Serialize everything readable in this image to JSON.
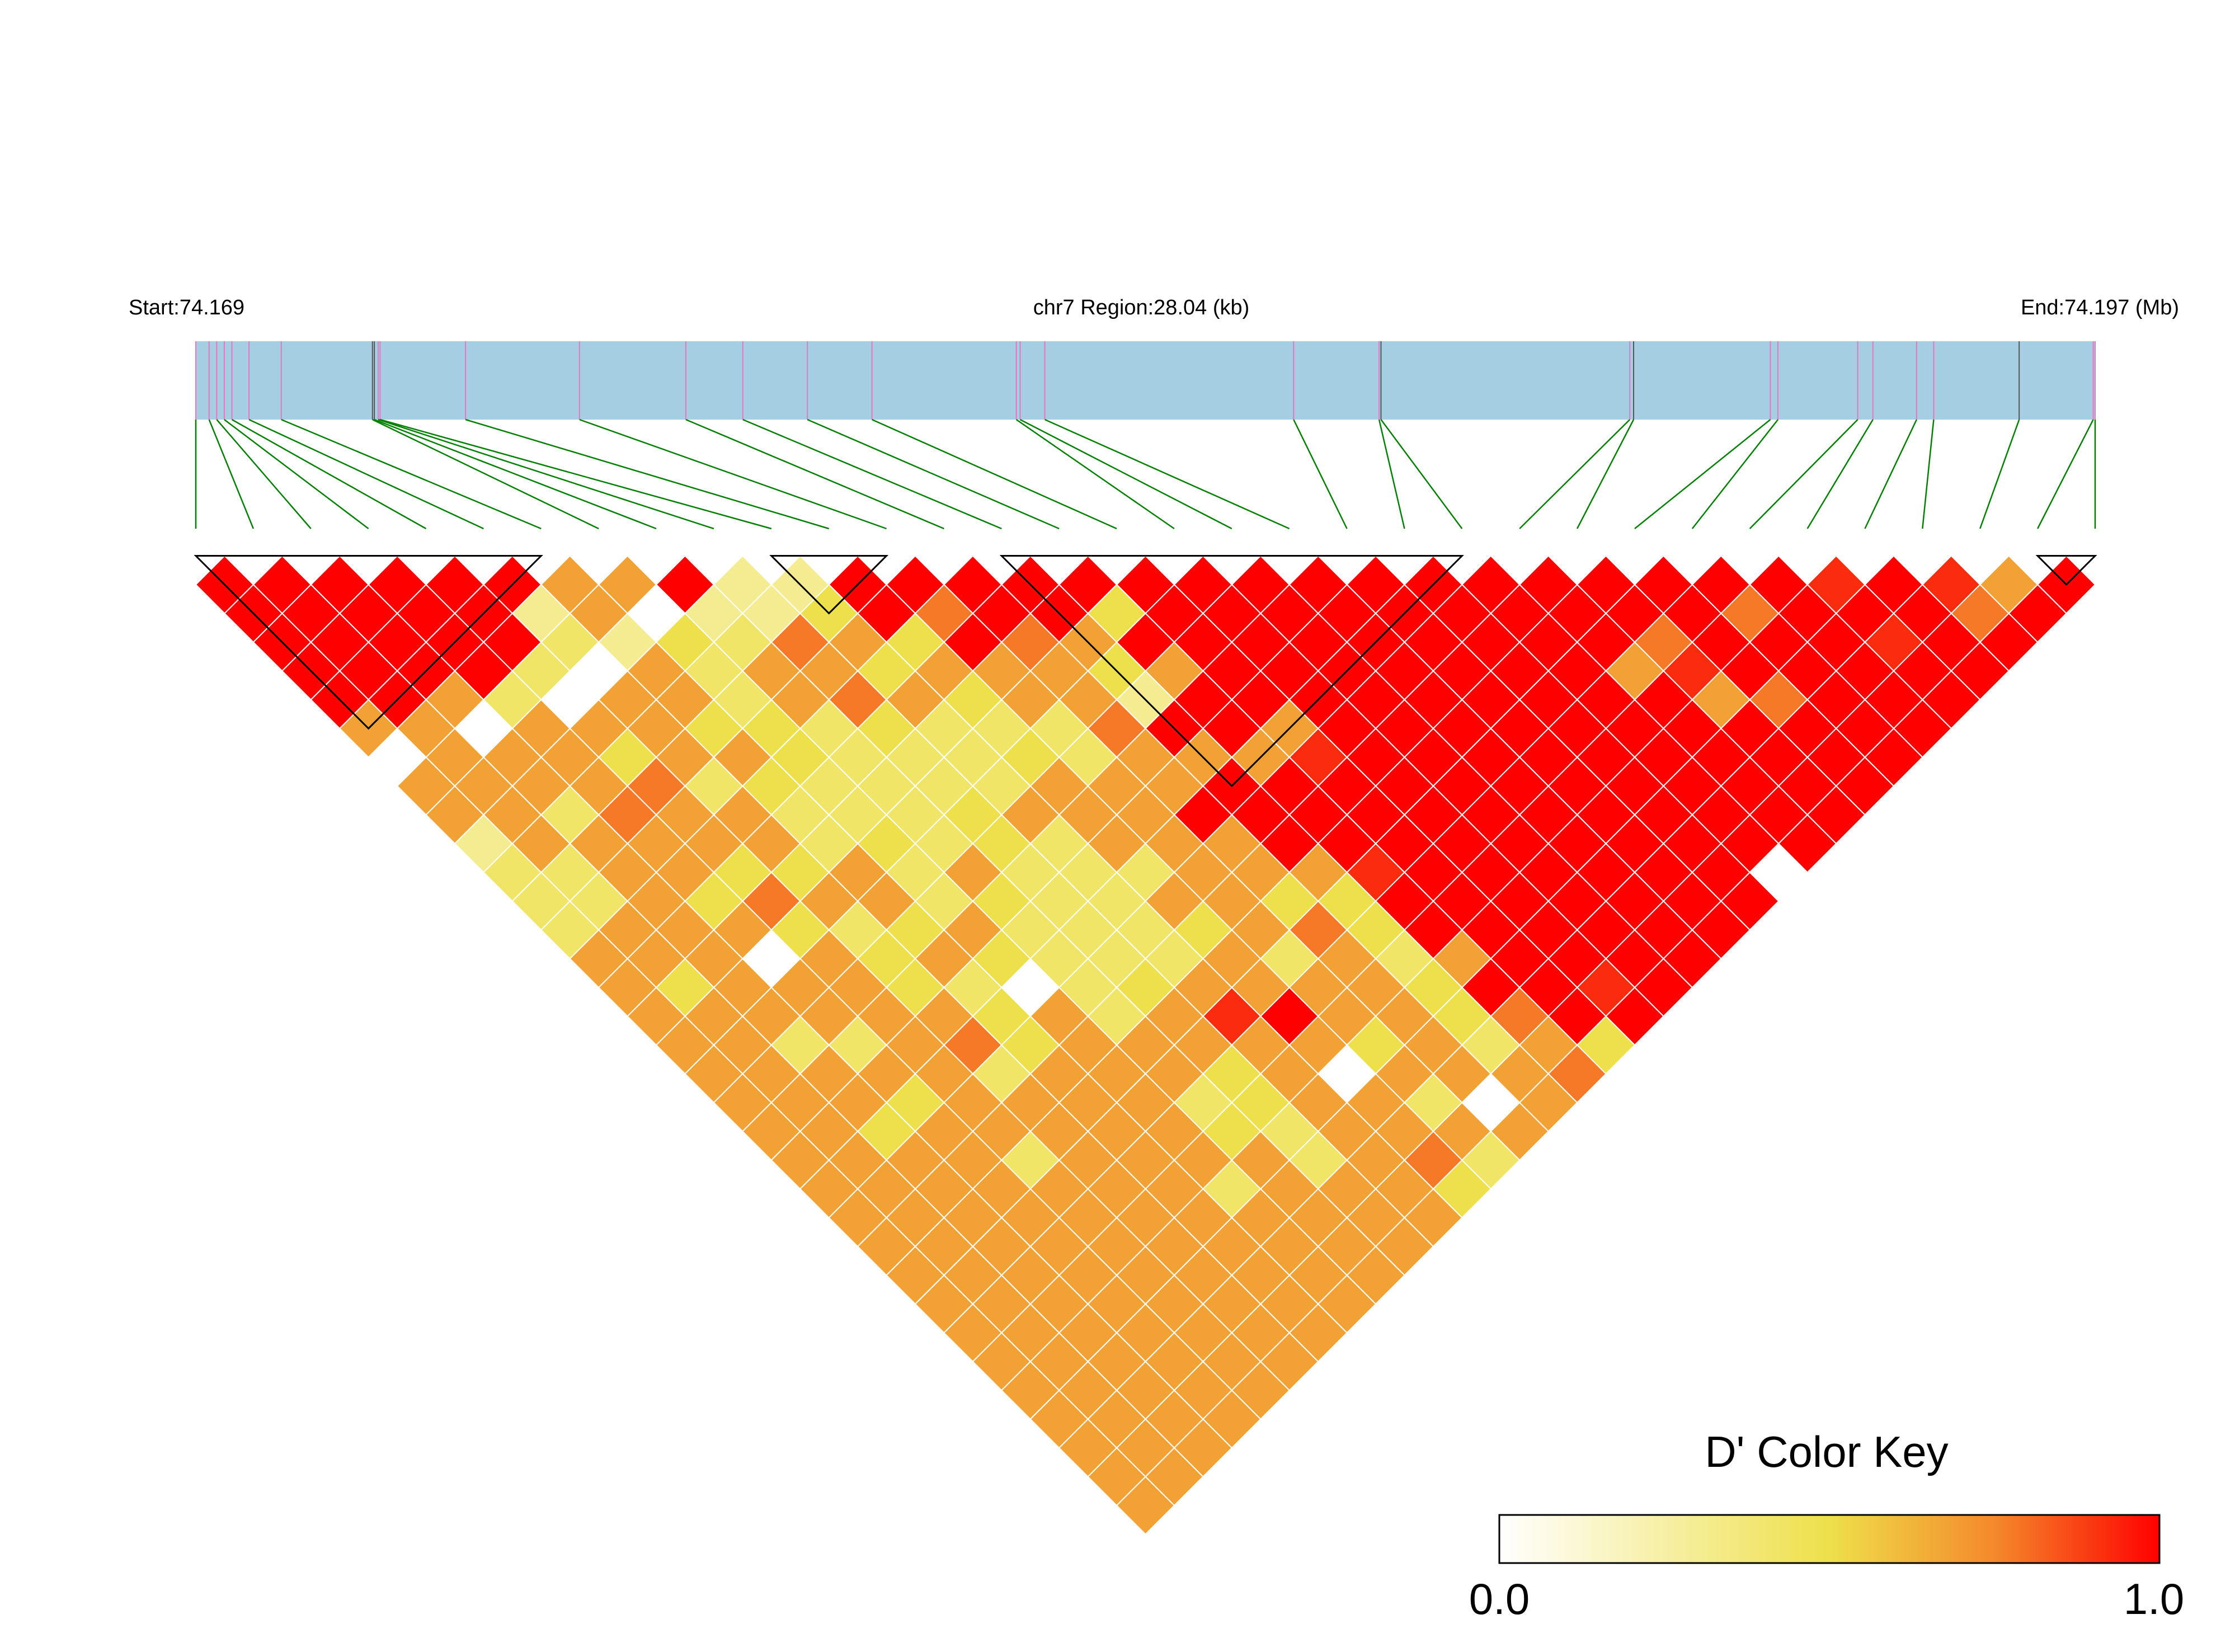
{
  "header": {
    "start_label": "Start:74.169",
    "region_label": "chr7 Region:28.04 (kb)",
    "end_label": "End:74.197 (Mb)"
  },
  "colors": {
    "gene_track": "#a6cee3",
    "snp_tick": "#e377c2",
    "tick_dark": "#555555",
    "connector": "#008000",
    "key_low": "#ffffff",
    "key_mid": "#eee04a",
    "key_high": "#ff0000",
    "block_outline": "#000000"
  },
  "chart_data": {
    "type": "heatmap",
    "description_of_values": "pairwise D' between SNPs (0 = white, 1 = red)",
    "region": {
      "chromosome": "chr7",
      "start_mb": 74.169,
      "end_mb": 74.197,
      "length_kb": 28.04
    },
    "snp_count": 34,
    "snp_positions_frac": [
      0,
      0.007,
      0.011,
      0.015,
      0.019,
      0.028,
      0.045,
      0.093,
      0.094,
      0.096,
      0.097,
      0.142,
      0.202,
      0.258,
      0.288,
      0.322,
      0.356,
      0.432,
      0.434,
      0.447,
      0.578,
      0.623,
      0.624,
      0.755,
      0.757,
      0.829,
      0.833,
      0.875,
      0.883,
      0.906,
      0.915,
      0.96,
      0.999,
      1.0
    ],
    "ld_blocks": [
      [
        0,
        6
      ],
      [
        10,
        12
      ],
      [
        14,
        22
      ],
      [
        32,
        33
      ]
    ],
    "color_levels": {
      "R": 1.0,
      "r": 0.92,
      "o": 0.78,
      "O": 0.68,
      "y": 0.5,
      "Y": 0.42,
      "p": 0.3,
      "w": 0.12,
      "W": 0.0
    },
    "rows": [
      "RRRRRROORppRRRRRRRRRRRRRRRRRrRrORrROR",
      "RRRRRpOWppyRoRRyRRRRRRRRRRoRRRoRRORRR",
      "RRRRRYpyYoOyRoORRRRRRRRRoRRRrRRrRRoRr",
      "RRRRYWOYOOyOOOyORRRRRRROrRRRRRRYoRRR",
      "RROYWOOYOoOyOOpRRRRRRRRROoRRRRoYoOR",
      "OOWOOOyyYyYYYoRRORRRRRRRRRRRRRRRRR",
      "WOOOyOOyYYYyYOOOrRRRRRRRRRRRRRRRRR",
      "OOOOoYyYYYYOOORRRRRRRRRRRRRRRRRR",
      "OOYoOOYYYyOOORRRRRRRRRRRRRRRRRR",
      "pOOOOOYyYyYOOORRRRRRRRRRoRRRRR",
      "YYOOyyOYOYYYOOOrRRRRRRWOoRRRR",
      "YYOyoOOYyYYOOyyRRRRRRRRRRRRR",
      "YOOOyYyOYYYyOoyRRRRRRRRRRRR",
      "OOOWOyOyYYYOYOYORRRRRRRRRR",
      "OyOOOyYWYyOOOOyRRrRRRRRRR",
      "OOOOOOyOYOrROOyoRRRRRRRR",
      "OOYYOoyOOOOOyOYOyRRRRRR",
      "OOOOOYOOOyOWOOOoRRRRR",
      "OOOyOOOOYyOOYWOOyRRR",
      "OOyOOOOOyYOOOOyRRR",
      "OOOOYOOOOYOoYOOR",
      "OOOOOOOYOOOyOOO",
      "OOOOOOOOOOOOOO",
      "OOOOOOOOOOOOO",
      "OOOOOOOOOOO",
      "OOOOOOOOOO",
      "OOOOOOOOO",
      "OOOOOOOO",
      "OOOOOOO",
      "OOOOOO",
      "OOOOO",
      "OOOO",
      "OOO",
      "O"
    ]
  },
  "legend": {
    "title": "D' Color Key",
    "min_label": "0.0",
    "max_label": "1.0",
    "min_value": 0.0,
    "max_value": 1.0
  }
}
